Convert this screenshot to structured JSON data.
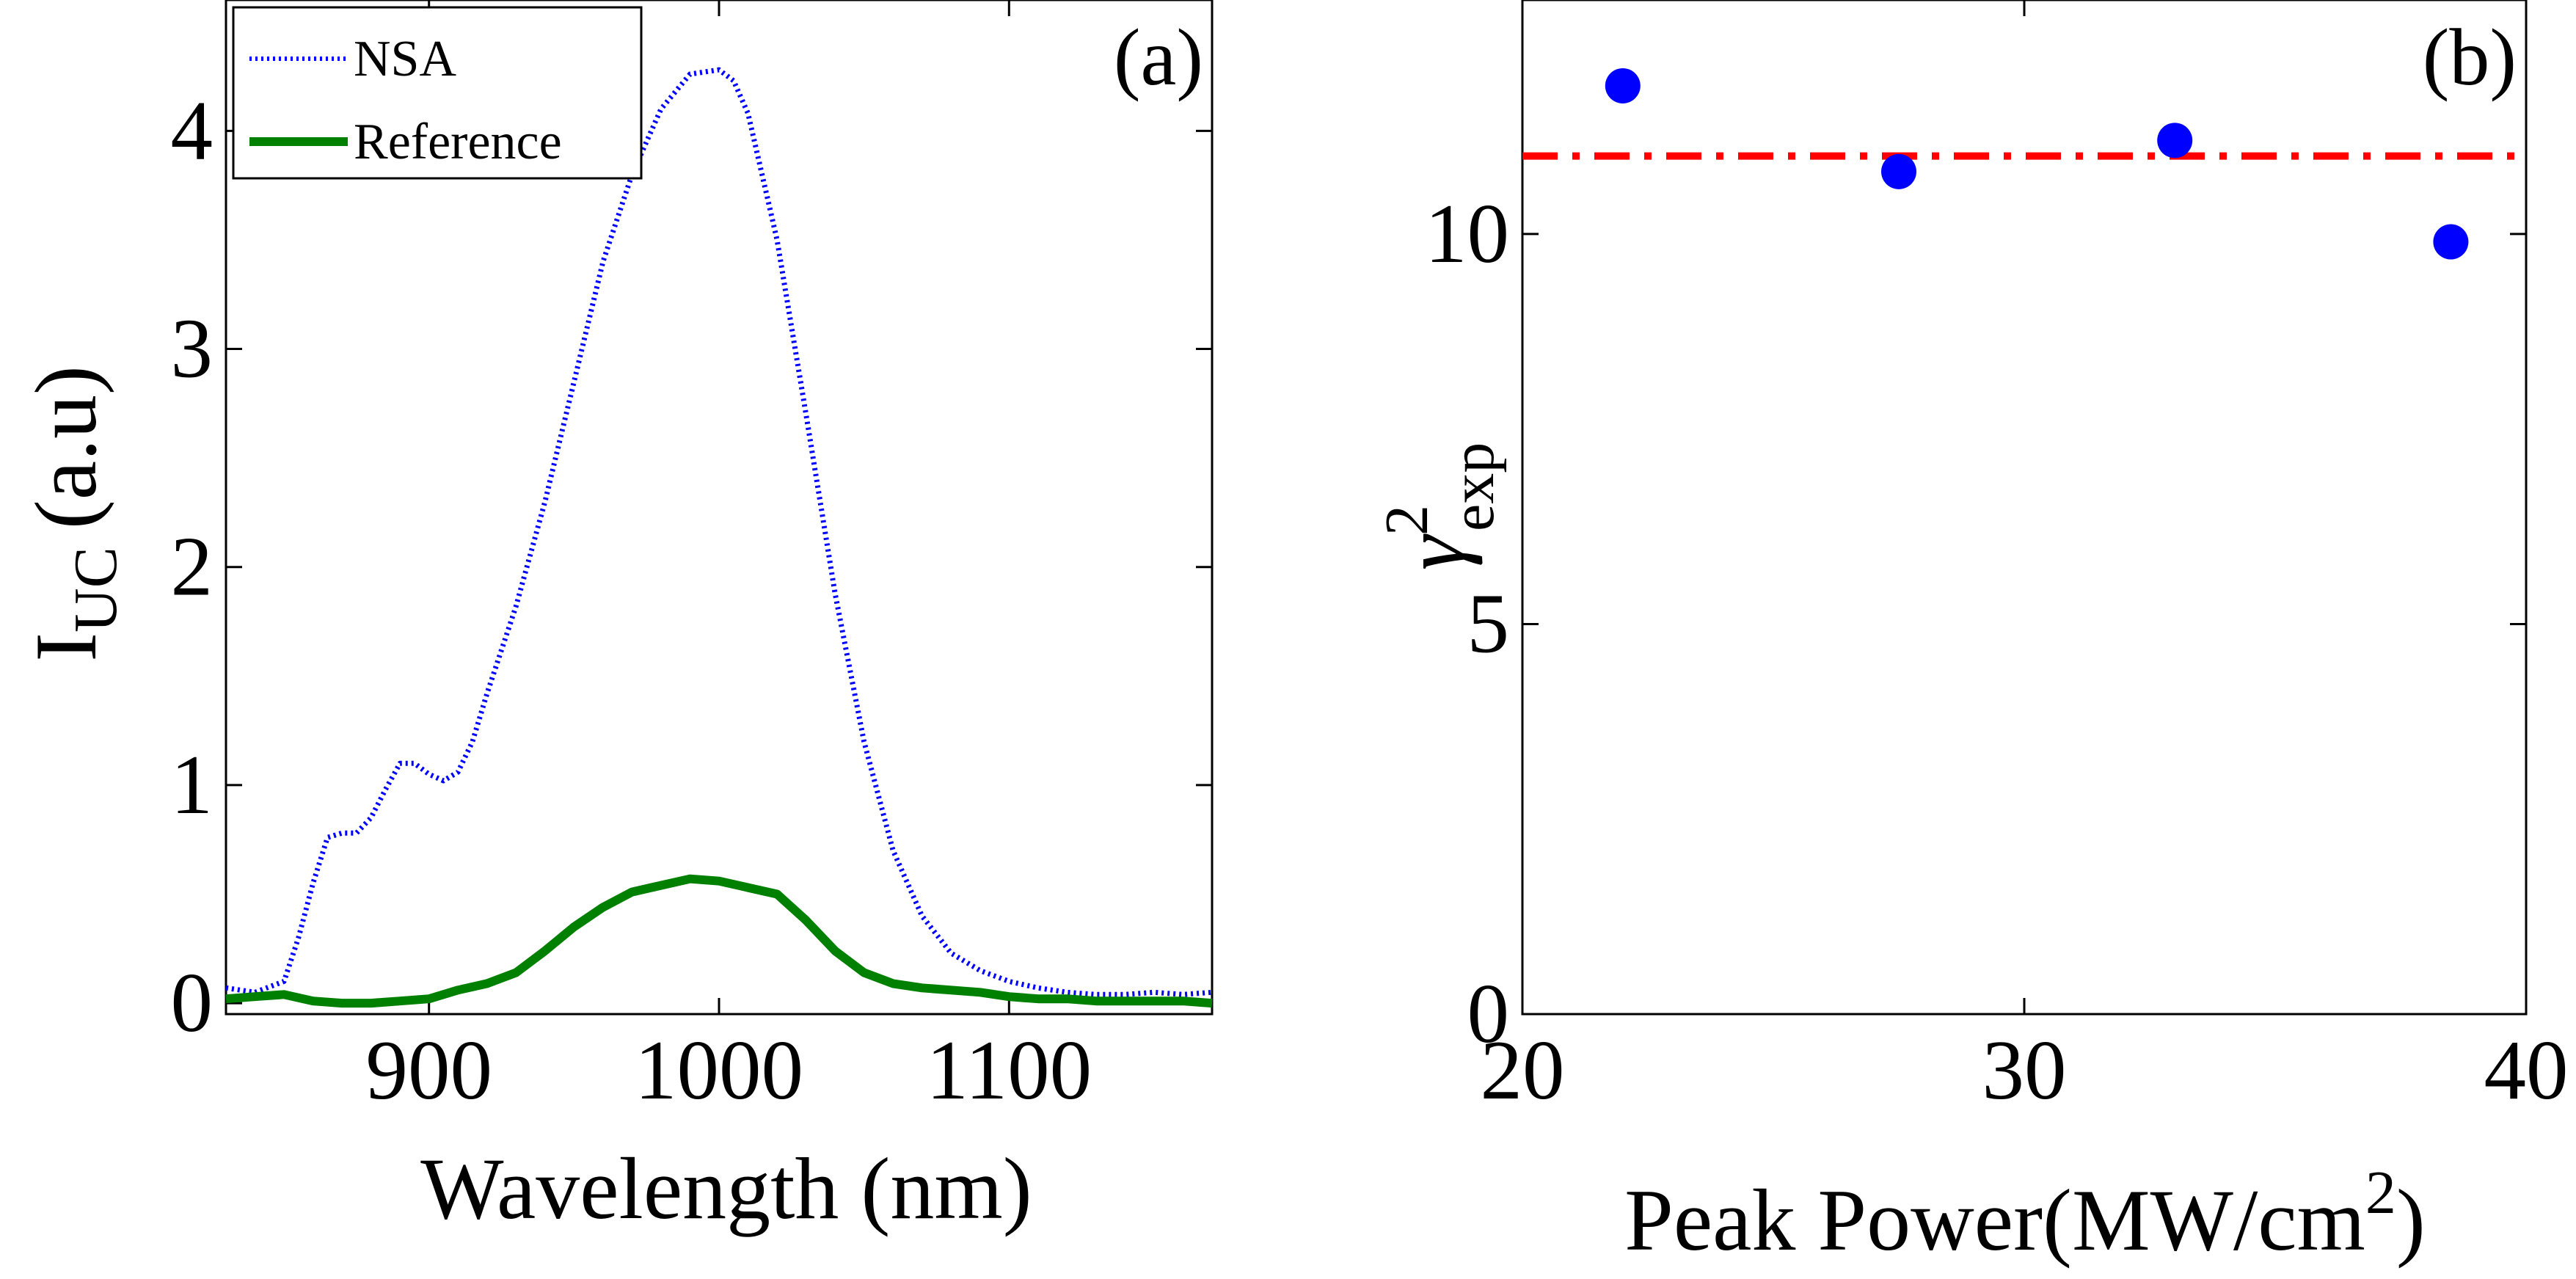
{
  "chart_data": [
    {
      "panel_label": "(a)",
      "type": "line",
      "xlabel": "Wavelength (nm)",
      "ylabel_main": "I",
      "ylabel_sub": "UC",
      "ylabel_unit": "(a.u)",
      "xlim": [
        830,
        1170
      ],
      "ylim": [
        -0.05,
        4.6
      ],
      "x_ticks": [
        900,
        1000,
        1100
      ],
      "x_tick_labels": [
        "900",
        "1000",
        "1100"
      ],
      "y_ticks": [
        0,
        1,
        2,
        3,
        4
      ],
      "y_tick_labels": [
        "0",
        "1",
        "2",
        "3",
        "4"
      ],
      "legend_position": "top-left",
      "series": [
        {
          "name": "NSA",
          "color": "#0000ff",
          "style": "dotted",
          "x": [
            830,
            840,
            850,
            855,
            860,
            865,
            870,
            875,
            880,
            885,
            890,
            895,
            900,
            905,
            910,
            915,
            920,
            930,
            940,
            950,
            960,
            970,
            980,
            990,
            1000,
            1005,
            1010,
            1020,
            1030,
            1040,
            1050,
            1060,
            1070,
            1080,
            1090,
            1100,
            1110,
            1120,
            1130,
            1140,
            1150,
            1160,
            1170
          ],
          "y": [
            0.07,
            0.05,
            0.1,
            0.3,
            0.55,
            0.76,
            0.78,
            0.78,
            0.85,
            0.98,
            1.1,
            1.1,
            1.05,
            1.02,
            1.06,
            1.2,
            1.42,
            1.82,
            2.3,
            2.85,
            3.4,
            3.8,
            4.1,
            4.26,
            4.28,
            4.23,
            4.08,
            3.5,
            2.7,
            1.88,
            1.2,
            0.7,
            0.4,
            0.23,
            0.15,
            0.1,
            0.07,
            0.05,
            0.04,
            0.04,
            0.05,
            0.04,
            0.05
          ]
        },
        {
          "name": "Reference",
          "color": "#008000",
          "style": "solid",
          "x": [
            830,
            840,
            850,
            860,
            870,
            880,
            890,
            900,
            910,
            920,
            930,
            940,
            950,
            960,
            970,
            980,
            990,
            1000,
            1010,
            1020,
            1030,
            1040,
            1050,
            1060,
            1070,
            1080,
            1090,
            1100,
            1110,
            1120,
            1130,
            1140,
            1150,
            1160,
            1170
          ],
          "y": [
            0.02,
            0.03,
            0.04,
            0.01,
            0.0,
            0.0,
            0.01,
            0.02,
            0.06,
            0.09,
            0.14,
            0.24,
            0.35,
            0.44,
            0.51,
            0.54,
            0.57,
            0.56,
            0.53,
            0.5,
            0.38,
            0.24,
            0.14,
            0.09,
            0.07,
            0.06,
            0.05,
            0.03,
            0.02,
            0.02,
            0.01,
            0.01,
            0.01,
            0.01,
            0.0
          ]
        }
      ]
    },
    {
      "panel_label": "(b)",
      "type": "scatter",
      "xlabel": "Peak Power(MW/cm",
      "xlabel_sup": "2",
      "xlabel_end": ")",
      "ylabel_main": "γ",
      "ylabel_sup": "2",
      "ylabel_sub": "exp",
      "xlim": [
        20,
        40
      ],
      "ylim": [
        0,
        13
      ],
      "x_ticks": [
        20,
        30,
        40
      ],
      "x_tick_labels": [
        "20",
        "30",
        "40"
      ],
      "y_ticks": [
        0,
        5,
        10
      ],
      "y_tick_labels": [
        "0",
        "5",
        "10"
      ],
      "series": [
        {
          "color": "#0000ff",
          "x": [
            22,
            27.5,
            33,
            38.5
          ],
          "y": [
            11.9,
            10.8,
            11.2,
            9.9
          ]
        }
      ],
      "reference_line": {
        "y": 11.0,
        "color": "#ff0000",
        "style": "dash-dot"
      }
    }
  ]
}
